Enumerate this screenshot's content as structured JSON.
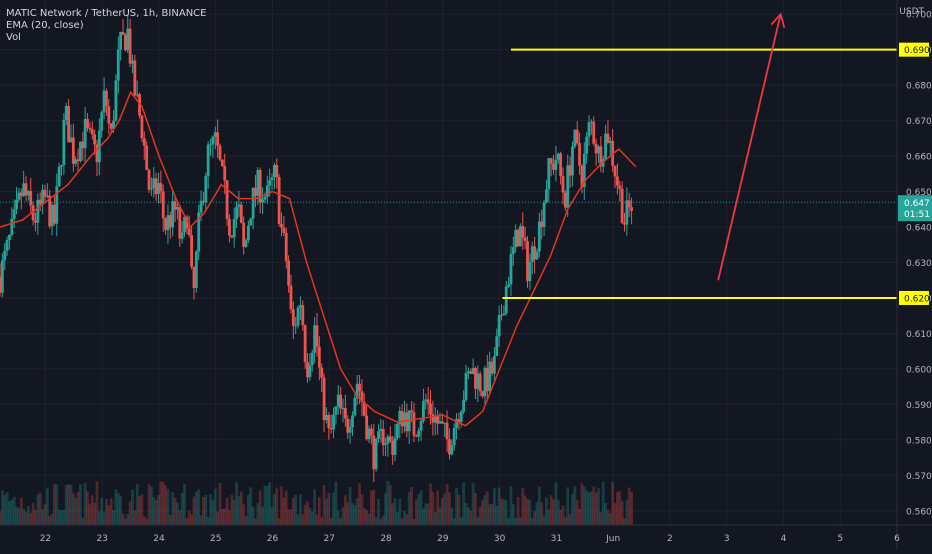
{
  "header": {
    "symbol_line": "MATIC Network / TetherUS, 1h, BINANCE",
    "ema_line": "EMA (20, close)",
    "vol_line": "Vol",
    "currency": "USDT"
  },
  "price_axis": {
    "ticks": [
      "0.700",
      "0.690",
      "0.680",
      "0.670",
      "0.660",
      "0.650",
      "0.640",
      "0.630",
      "0.620",
      "0.610",
      "0.600",
      "0.590",
      "0.580",
      "0.570",
      "0.560"
    ],
    "current_price": "0.647",
    "countdown": "01:51"
  },
  "time_axis": {
    "labels": [
      "22",
      "23",
      "24",
      "25",
      "26",
      "27",
      "28",
      "29",
      "30",
      "31",
      "Jun",
      "2",
      "3",
      "4",
      "5",
      "6"
    ]
  },
  "colors": {
    "background": "#131722",
    "up": "#26a69a",
    "down": "#ef5350",
    "ema": "#e8341c",
    "level": "#ffff00",
    "arrow": "#f23645"
  },
  "chart_data": {
    "type": "candlestick",
    "x_unit": "day of month (May 2021 timeframe), 1h candles",
    "ylim": [
      0.556,
      0.704
    ],
    "xlim": [
      21.2,
      37.0
    ],
    "levels": [
      {
        "label": "0.690",
        "value": 0.69,
        "from_day": 30.2
      },
      {
        "label": "0.620",
        "value": 0.62,
        "from_day": 30.05
      }
    ],
    "forecast_arrow": {
      "from": [
        33.85,
        0.625
      ],
      "to": [
        34.95,
        0.7
      ]
    },
    "close_path": [
      [
        21.2,
        0.626
      ],
      [
        21.4,
        0.638
      ],
      [
        21.6,
        0.651
      ],
      [
        21.8,
        0.642
      ],
      [
        22.0,
        0.648
      ],
      [
        22.15,
        0.64
      ],
      [
        22.35,
        0.672
      ],
      [
        22.5,
        0.66
      ],
      [
        22.7,
        0.667
      ],
      [
        22.9,
        0.66
      ],
      [
        23.05,
        0.678
      ],
      [
        23.15,
        0.664
      ],
      [
        23.3,
        0.69
      ],
      [
        23.45,
        0.695
      ],
      [
        23.55,
        0.68
      ],
      [
        23.7,
        0.668
      ],
      [
        23.85,
        0.648
      ],
      [
        24.0,
        0.652
      ],
      [
        24.1,
        0.64
      ],
      [
        24.3,
        0.645
      ],
      [
        24.4,
        0.634
      ],
      [
        24.5,
        0.645
      ],
      [
        24.6,
        0.618
      ],
      [
        24.7,
        0.64
      ],
      [
        24.85,
        0.66
      ],
      [
        25.0,
        0.664
      ],
      [
        25.15,
        0.65
      ],
      [
        25.25,
        0.64
      ],
      [
        25.4,
        0.645
      ],
      [
        25.5,
        0.632
      ],
      [
        25.6,
        0.645
      ],
      [
        25.75,
        0.652
      ],
      [
        25.9,
        0.648
      ],
      [
        26.05,
        0.655
      ],
      [
        26.15,
        0.64
      ],
      [
        26.25,
        0.63
      ],
      [
        26.35,
        0.61
      ],
      [
        26.5,
        0.62
      ],
      [
        26.6,
        0.6
      ],
      [
        26.75,
        0.612
      ],
      [
        26.85,
        0.595
      ],
      [
        27.0,
        0.58
      ],
      [
        27.15,
        0.59
      ],
      [
        27.3,
        0.583
      ],
      [
        27.5,
        0.597
      ],
      [
        27.65,
        0.585
      ],
      [
        27.8,
        0.575
      ],
      [
        27.95,
        0.582
      ],
      [
        28.1,
        0.578
      ],
      [
        28.3,
        0.588
      ],
      [
        28.5,
        0.583
      ],
      [
        28.7,
        0.591
      ],
      [
        28.9,
        0.585
      ],
      [
        29.1,
        0.579
      ],
      [
        29.3,
        0.59
      ],
      [
        29.5,
        0.6
      ],
      [
        29.7,
        0.595
      ],
      [
        29.9,
        0.6
      ],
      [
        30.05,
        0.618
      ],
      [
        30.2,
        0.63
      ],
      [
        30.35,
        0.64
      ],
      [
        30.5,
        0.628
      ],
      [
        30.7,
        0.64
      ],
      [
        30.85,
        0.655
      ],
      [
        31.0,
        0.66
      ],
      [
        31.15,
        0.648
      ],
      [
        31.3,
        0.665
      ],
      [
        31.45,
        0.655
      ],
      [
        31.6,
        0.67
      ],
      [
        31.75,
        0.66
      ],
      [
        31.9,
        0.667
      ],
      [
        32.05,
        0.655
      ],
      [
        32.2,
        0.642
      ],
      [
        32.35,
        0.647
      ]
    ],
    "ema_path": [
      [
        21.2,
        0.64
      ],
      [
        21.6,
        0.642
      ],
      [
        22.0,
        0.647
      ],
      [
        22.4,
        0.652
      ],
      [
        22.8,
        0.66
      ],
      [
        23.1,
        0.665
      ],
      [
        23.3,
        0.67
      ],
      [
        23.5,
        0.678
      ],
      [
        23.7,
        0.674
      ],
      [
        24.0,
        0.66
      ],
      [
        24.3,
        0.648
      ],
      [
        24.55,
        0.64
      ],
      [
        24.8,
        0.644
      ],
      [
        25.1,
        0.652
      ],
      [
        25.4,
        0.648
      ],
      [
        25.7,
        0.648
      ],
      [
        26.0,
        0.65
      ],
      [
        26.3,
        0.648
      ],
      [
        26.6,
        0.63
      ],
      [
        26.9,
        0.615
      ],
      [
        27.2,
        0.6
      ],
      [
        27.5,
        0.592
      ],
      [
        27.8,
        0.588
      ],
      [
        28.2,
        0.585
      ],
      [
        28.6,
        0.586
      ],
      [
        29.0,
        0.587
      ],
      [
        29.4,
        0.584
      ],
      [
        29.7,
        0.588
      ],
      [
        30.0,
        0.6
      ],
      [
        30.3,
        0.612
      ],
      [
        30.6,
        0.622
      ],
      [
        30.9,
        0.632
      ],
      [
        31.2,
        0.645
      ],
      [
        31.5,
        0.653
      ],
      [
        31.8,
        0.658
      ],
      [
        32.1,
        0.662
      ],
      [
        32.4,
        0.657
      ]
    ]
  }
}
